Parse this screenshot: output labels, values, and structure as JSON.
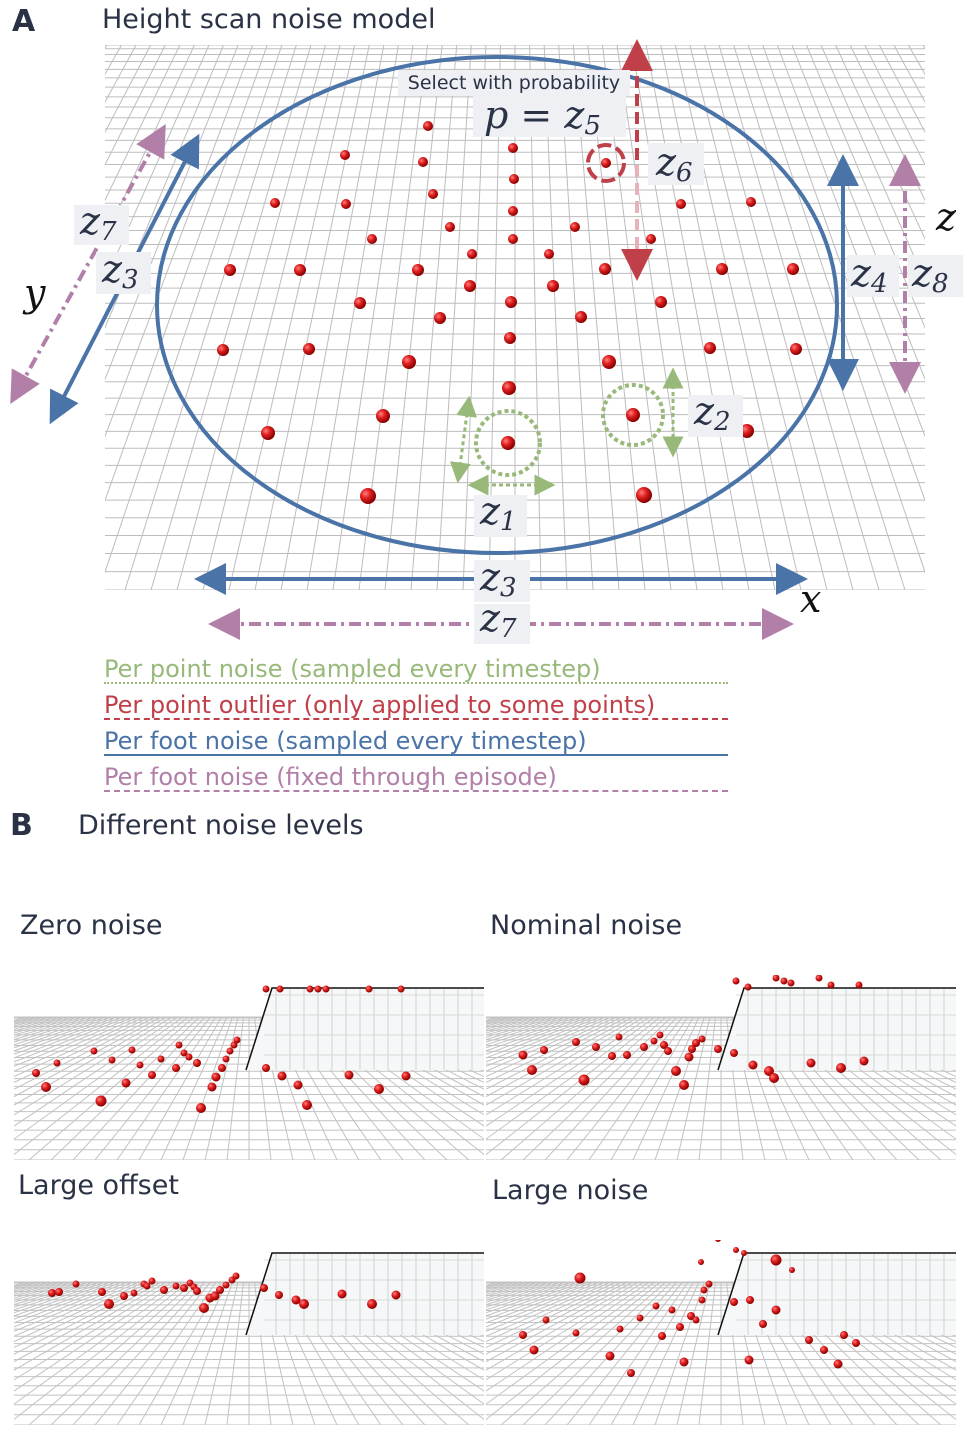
{
  "panel_a": {
    "letter": "A",
    "title": "Height scan noise model",
    "select_label": "Select with probability",
    "prob_eq": "p = z",
    "prob_sub": "5",
    "labels": {
      "z1": {
        "base": "z",
        "sub": "1"
      },
      "z2": {
        "base": "z",
        "sub": "2"
      },
      "z3a": {
        "base": "z",
        "sub": "3"
      },
      "z3b": {
        "base": "z",
        "sub": "3"
      },
      "z4": {
        "base": "z",
        "sub": "4"
      },
      "z6": {
        "base": "z",
        "sub": "6"
      },
      "z7a": {
        "base": "z",
        "sub": "7"
      },
      "z7b": {
        "base": "z",
        "sub": "7"
      },
      "z8": {
        "base": "z",
        "sub": "8"
      }
    },
    "axes": {
      "x": "x",
      "y": "y",
      "z": "z"
    }
  },
  "legend": [
    {
      "text": "Per point noise (sampled every timestep)"
    },
    {
      "text": "Per point outlier (only applied to some points)"
    },
    {
      "text": "Per foot noise (sampled every timestep)"
    },
    {
      "text": "Per foot noise (fixed through episode)"
    }
  ],
  "panel_b": {
    "letter": "B",
    "title": "Different noise levels",
    "subpanels": [
      {
        "title": "Zero noise"
      },
      {
        "title": "Nominal noise"
      },
      {
        "title": "Large offset"
      },
      {
        "title": "Large noise"
      }
    ]
  },
  "colors": {
    "green": "#98b97a",
    "red": "#c0404a",
    "blue": "#4a73a8",
    "purple": "#b27fa8",
    "point": "#d42020",
    "grid": "#b8b8b8"
  }
}
